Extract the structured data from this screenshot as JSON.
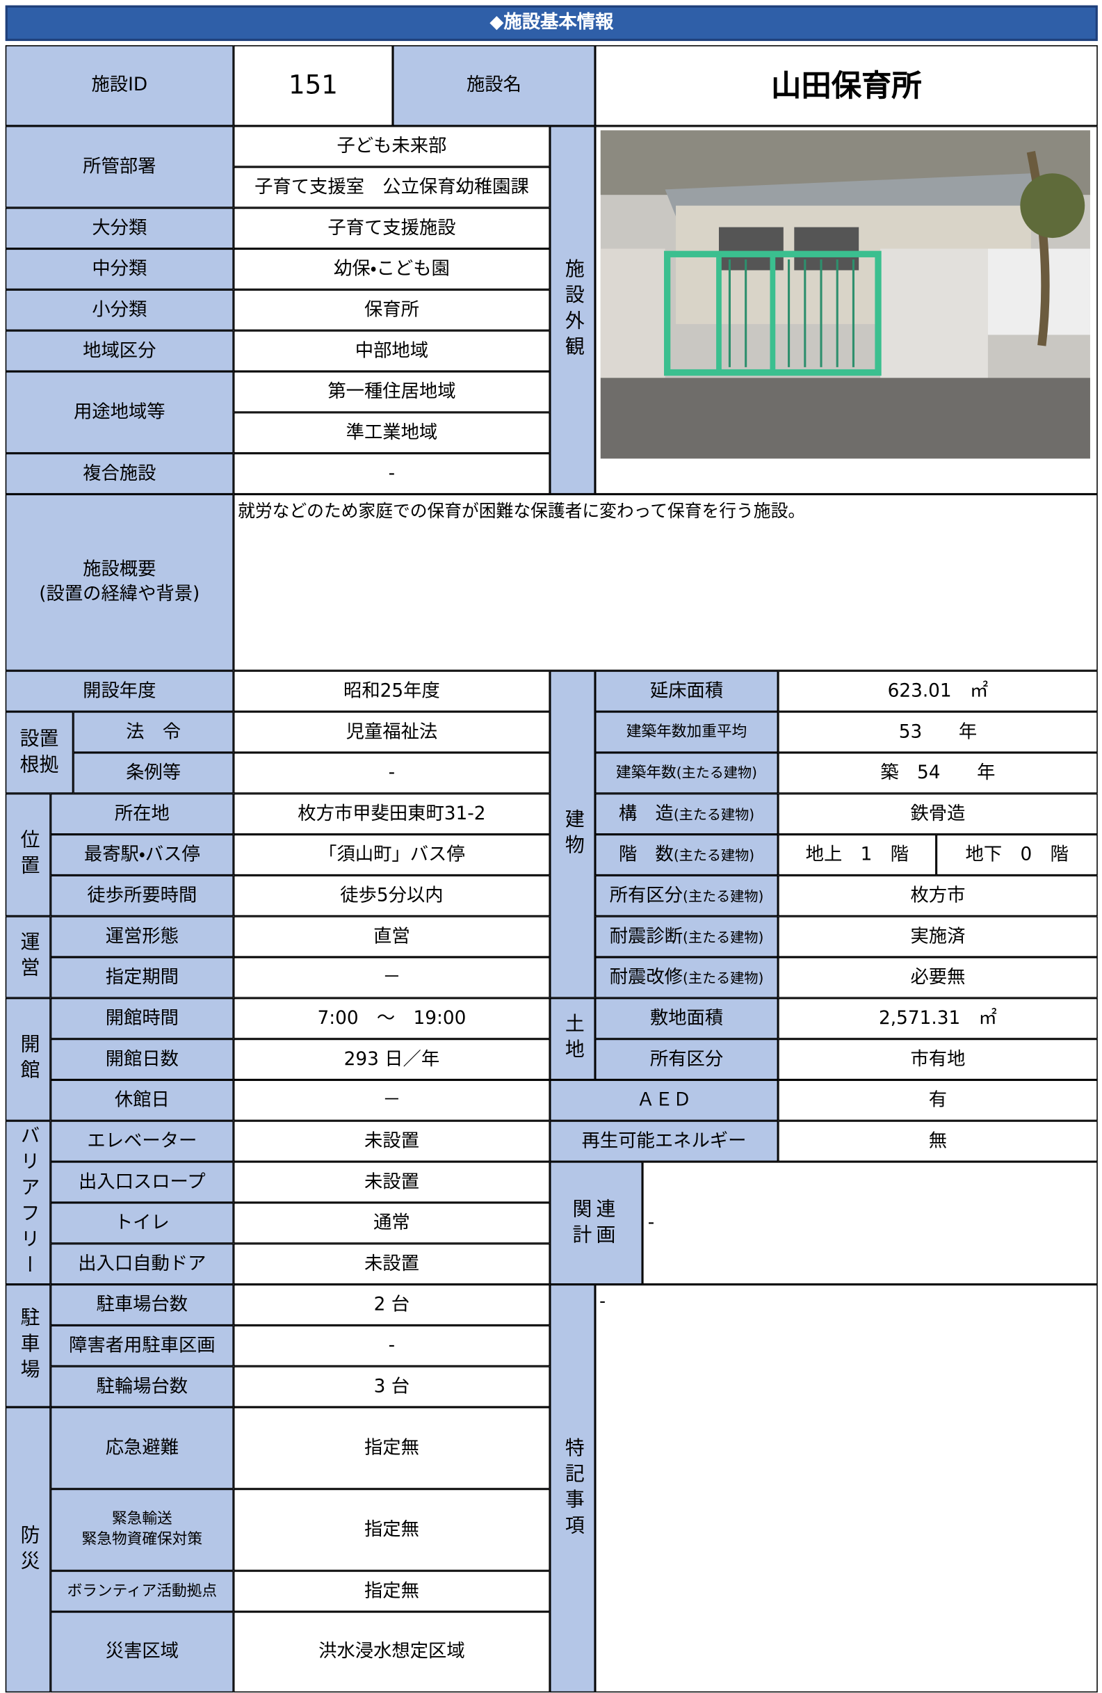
{
  "header": {
    "title": "◆施設基本情報"
  },
  "id_row": {
    "id_label": "施設ID",
    "id": "151",
    "name_label": "施設名",
    "name": "山田保育所"
  },
  "overview_side": {
    "photo_label": "施設外観"
  },
  "general": [
    {
      "label": "所管部署",
      "values": [
        "子ども未来部",
        "子育て支援室　公立保育幼稚園課"
      ]
    },
    {
      "label": "大分類",
      "values": [
        "子育て支援施設"
      ]
    },
    {
      "label": "中分類",
      "values": [
        "幼保・こども園"
      ]
    },
    {
      "label": "小分類",
      "values": [
        "保育所"
      ]
    },
    {
      "label": "地域区分",
      "values": [
        "中部地域"
      ]
    },
    {
      "label": "用途地域等",
      "values": [
        "第一種住居地域",
        "準工業地域"
      ]
    },
    {
      "label": "複合施設",
      "values": [
        "-"
      ]
    }
  ],
  "summary": {
    "label": "施設概要\n(設置の経緯や背景)",
    "text": "就労などのため家庭での保育が困難な保護者に変わって保育を行う施設。"
  },
  "opening": {
    "label": "開設年度",
    "value": "昭和25年度"
  },
  "basis": {
    "group": "設置根拠",
    "items": [
      {
        "label": "法　令",
        "value": "児童福祉法"
      },
      {
        "label": "条例等",
        "value": "-"
      }
    ]
  },
  "location": {
    "group": "位置",
    "items": [
      {
        "label": "所在地",
        "value": "枚方市甲斐田東町31-2"
      },
      {
        "label": "最寄駅・バス停",
        "value": "「須山町」バス停"
      },
      {
        "label": "徒歩所要時間",
        "value": "徒歩5分以内"
      }
    ]
  },
  "operation": {
    "group": "運営",
    "items": [
      {
        "label": "運営形態",
        "value": "直営"
      },
      {
        "label": "指定期間",
        "value": "－"
      }
    ]
  },
  "hours": {
    "group": "開館",
    "items": [
      {
        "label": "開館時間",
        "value": "7:00　～　19:00"
      },
      {
        "label": "開館日数",
        "value": "293 日／年"
      },
      {
        "label": "休館日",
        "value": "－"
      }
    ]
  },
  "barrier_free": {
    "group": "バリアフリー",
    "items": [
      {
        "label": "エレベーター",
        "value": "未設置"
      },
      {
        "label": "出入口スロープ",
        "value": "未設置"
      },
      {
        "label": "トイレ",
        "value": "通常"
      },
      {
        "label": "出入口自動ドア",
        "value": "未設置"
      }
    ]
  },
  "parking": {
    "group": "駐車場",
    "items": [
      {
        "label": "駐車場台数",
        "value": "2 台"
      },
      {
        "label": "障害者用駐車区画",
        "value": "-"
      },
      {
        "label": "駐輪場台数",
        "value": "3 台"
      }
    ]
  },
  "disaster": {
    "group": "防災",
    "items": [
      {
        "label": "応急避難",
        "value": "指定無"
      },
      {
        "label": "緊急輸送\n緊急物資確保対策",
        "value": "指定無"
      },
      {
        "label": "ボランティア活動拠点",
        "value": "指定無"
      },
      {
        "label": "災害区域",
        "value": "洪水浸水想定区域"
      }
    ]
  },
  "building": {
    "group": "建物",
    "items": [
      {
        "label": "延床面積",
        "value": "623.01　㎡"
      },
      {
        "label": "建築年数加重平均",
        "value": "53　　年"
      },
      {
        "label": "建築年数",
        "note": "(主たる建物)",
        "value": "築　54　　年"
      },
      {
        "label": "構　造",
        "note": "(主たる建物)",
        "value": "鉄骨造"
      },
      {
        "label": "階　数",
        "note": "(主たる建物)",
        "values": [
          "地上　1　階",
          "地下　0　階"
        ]
      },
      {
        "label": "所有区分",
        "note": "(主たる建物)",
        "value": "枚方市"
      },
      {
        "label": "耐震診断",
        "note": "(主たる建物)",
        "value": "実施済"
      },
      {
        "label": "耐震改修",
        "note": "(主たる建物)",
        "value": "必要無"
      }
    ]
  },
  "land": {
    "group": "土地",
    "items": [
      {
        "label": "敷地面積",
        "value": "2,571.31　㎡"
      },
      {
        "label": "所有区分",
        "value": "市有地"
      }
    ]
  },
  "aed": {
    "label": "ＡＥＤ",
    "value": "有"
  },
  "renewable": {
    "label": "再生可能エネルギー",
    "value": "無"
  },
  "related_plan": {
    "label": "関連計画",
    "value": "-"
  },
  "special_notes": {
    "label": "特記事項",
    "value": "-"
  }
}
